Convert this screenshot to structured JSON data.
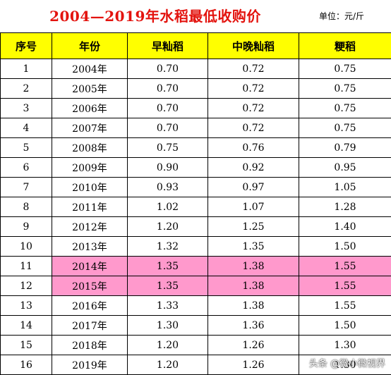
{
  "title": "2004—2019年水稻最低收购价",
  "unit": "单位：元/斤",
  "colors": {
    "header_bg": "#ffff00",
    "highlight_bg": "#ff99cc",
    "title_color": "#e3130e"
  },
  "headers": [
    "序号",
    "年份",
    "早籼稻",
    "中晚籼稻",
    "粳稻"
  ],
  "rows": [
    {
      "no": "1",
      "year": "2004年",
      "early_indica": "0.70",
      "mid_late_indica": "0.72",
      "japonica": "0.75",
      "highlight": false
    },
    {
      "no": "2",
      "year": "2005年",
      "early_indica": "0.70",
      "mid_late_indica": "0.72",
      "japonica": "0.75",
      "highlight": false
    },
    {
      "no": "3",
      "year": "2006年",
      "early_indica": "0.70",
      "mid_late_indica": "0.72",
      "japonica": "0.75",
      "highlight": false
    },
    {
      "no": "4",
      "year": "2007年",
      "early_indica": "0.70",
      "mid_late_indica": "0.72",
      "japonica": "0.75",
      "highlight": false
    },
    {
      "no": "5",
      "year": "2008年",
      "early_indica": "0.75",
      "mid_late_indica": "0.76",
      "japonica": "0.79",
      "highlight": false
    },
    {
      "no": "6",
      "year": "2009年",
      "early_indica": "0.90",
      "mid_late_indica": "0.92",
      "japonica": "0.95",
      "highlight": false
    },
    {
      "no": "7",
      "year": "2010年",
      "early_indica": "0.93",
      "mid_late_indica": "0.97",
      "japonica": "1.05",
      "highlight": false
    },
    {
      "no": "8",
      "year": "2011年",
      "early_indica": "1.02",
      "mid_late_indica": "1.07",
      "japonica": "1.28",
      "highlight": false
    },
    {
      "no": "9",
      "year": "2012年",
      "early_indica": "1.20",
      "mid_late_indica": "1.25",
      "japonica": "1.40",
      "highlight": false
    },
    {
      "no": "10",
      "year": "2013年",
      "early_indica": "1.32",
      "mid_late_indica": "1.35",
      "japonica": "1.50",
      "highlight": false
    },
    {
      "no": "11",
      "year": "2014年",
      "early_indica": "1.35",
      "mid_late_indica": "1.38",
      "japonica": "1.55",
      "highlight": true
    },
    {
      "no": "12",
      "year": "2015年",
      "early_indica": "1.35",
      "mid_late_indica": "1.38",
      "japonica": "1.55",
      "highlight": true
    },
    {
      "no": "13",
      "year": "2016年",
      "early_indica": "1.33",
      "mid_late_indica": "1.38",
      "japonica": "1.55",
      "highlight": false
    },
    {
      "no": "14",
      "year": "2017年",
      "early_indica": "1.30",
      "mid_late_indica": "1.36",
      "japonica": "1.50",
      "highlight": false
    },
    {
      "no": "15",
      "year": "2018年",
      "early_indica": "1.20",
      "mid_late_indica": "1.26",
      "japonica": "1.30",
      "highlight": false
    },
    {
      "no": "16",
      "year": "2019年",
      "early_indica": "1.20",
      "mid_late_indica": "1.26",
      "japonica": "1.30",
      "highlight": false
    }
  ],
  "watermark": "头条 @微小微视界"
}
